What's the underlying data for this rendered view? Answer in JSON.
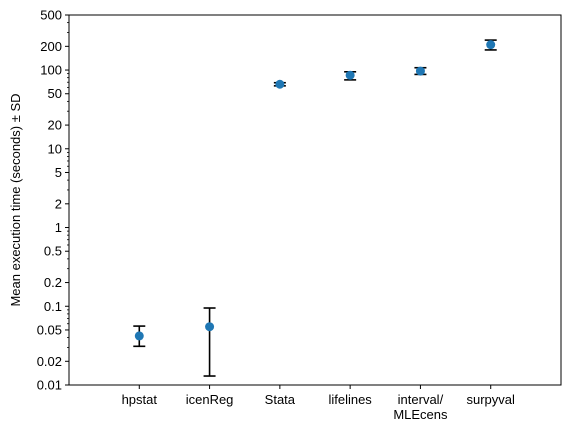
{
  "chart_data": {
    "type": "scatter",
    "title": "",
    "xlabel": "",
    "ylabel": "Mean execution time (seconds) ± SD",
    "yscale": "log",
    "ylim": [
      0.01,
      500
    ],
    "y_ticks": [
      0.01,
      0.02,
      0.05,
      0.1,
      0.2,
      0.5,
      1,
      2,
      5,
      10,
      20,
      50,
      100,
      200,
      500
    ],
    "y_tick_labels": [
      "0.01",
      "0.02",
      "0.05",
      "0.1",
      "0.2",
      "0.5",
      "1",
      "2",
      "5",
      "10",
      "20",
      "50",
      "100",
      "200",
      "500"
    ],
    "categories": [
      "hpstat",
      "icenReg",
      "Stata",
      "lifelines",
      "interval/\nMLEcens",
      "surpyval"
    ],
    "values": [
      0.042,
      0.055,
      66,
      86,
      97,
      210
    ],
    "error_low": [
      0.031,
      0.013,
      63,
      75,
      88,
      180
    ],
    "error_high": [
      0.056,
      0.095,
      69,
      95,
      107,
      240
    ],
    "grid": false,
    "legend": false,
    "colors": {
      "marker": "#1f77b4",
      "errorbar": "#000000",
      "axis": "#000000"
    }
  }
}
